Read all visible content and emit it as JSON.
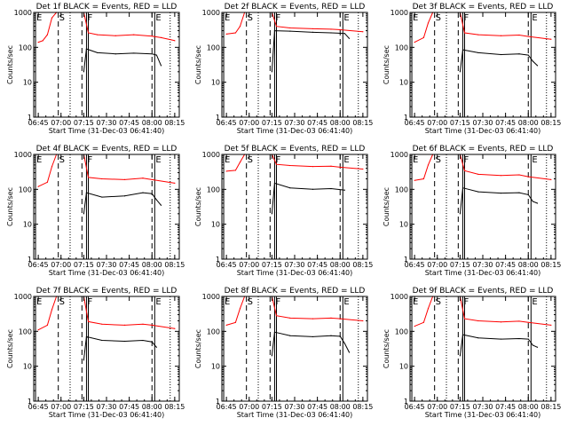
{
  "chart_data": [
    {
      "title": "Det 1f BLACK = Events, RED = LLD",
      "xlabel": "Start Time (31-Dec-03 06:41:40)",
      "ylabel": "Counts/sec",
      "red": {
        "pre": [
          {
            "x": 6.75,
            "y": 140
          },
          {
            "x": 6.8,
            "y": 155
          },
          {
            "x": 6.85,
            "y": 230
          },
          {
            "x": 6.9,
            "y": 700
          },
          {
            "x": 6.95,
            "y": 1000
          }
        ],
        "post": [
          {
            "x": 7.25,
            "y": 1000
          },
          {
            "x": 7.3,
            "y": 260
          },
          {
            "x": 7.4,
            "y": 230
          },
          {
            "x": 7.6,
            "y": 215
          },
          {
            "x": 7.8,
            "y": 230
          },
          {
            "x": 8.0,
            "y": 210
          },
          {
            "x": 8.1,
            "y": 190
          },
          {
            "x": 8.25,
            "y": 155
          }
        ]
      },
      "black": [
        {
          "x": 7.25,
          "y": 20
        },
        {
          "x": 7.28,
          "y": 90
        },
        {
          "x": 7.4,
          "y": 70
        },
        {
          "x": 7.6,
          "y": 65
        },
        {
          "x": 7.8,
          "y": 68
        },
        {
          "x": 8.0,
          "y": 65
        },
        {
          "x": 8.05,
          "y": 60
        },
        {
          "x": 8.1,
          "y": 30
        }
      ]
    },
    {
      "title": "Det 2f BLACK = Events, RED = LLD",
      "xlabel": "Start Time (31-Dec-03 06:41:40)",
      "ylabel": "Counts/sec",
      "red": {
        "pre": [
          {
            "x": 6.75,
            "y": 240
          },
          {
            "x": 6.85,
            "y": 260
          },
          {
            "x": 6.9,
            "y": 400
          },
          {
            "x": 6.95,
            "y": 1000
          }
        ],
        "post": [
          {
            "x": 7.25,
            "y": 1000
          },
          {
            "x": 7.3,
            "y": 400
          },
          {
            "x": 7.45,
            "y": 360
          },
          {
            "x": 7.7,
            "y": 340
          },
          {
            "x": 7.9,
            "y": 330
          },
          {
            "x": 8.0,
            "y": 320
          },
          {
            "x": 8.25,
            "y": 280
          }
        ]
      },
      "black": [
        {
          "x": 7.25,
          "y": 20
        },
        {
          "x": 7.28,
          "y": 300
        },
        {
          "x": 7.45,
          "y": 290
        },
        {
          "x": 7.7,
          "y": 270
        },
        {
          "x": 7.9,
          "y": 260
        },
        {
          "x": 8.05,
          "y": 250
        },
        {
          "x": 8.1,
          "y": 180
        }
      ]
    },
    {
      "title": "Det 3f BLACK = Events, RED = LLD",
      "xlabel": "Start Time (31-Dec-03 06:41:40)",
      "ylabel": "Counts/sec",
      "red": {
        "pre": [
          {
            "x": 6.75,
            "y": 140
          },
          {
            "x": 6.85,
            "y": 190
          },
          {
            "x": 6.9,
            "y": 500
          },
          {
            "x": 6.95,
            "y": 1000
          }
        ],
        "post": [
          {
            "x": 7.25,
            "y": 1000
          },
          {
            "x": 7.3,
            "y": 260
          },
          {
            "x": 7.45,
            "y": 230
          },
          {
            "x": 7.7,
            "y": 215
          },
          {
            "x": 7.9,
            "y": 225
          },
          {
            "x": 8.0,
            "y": 205
          },
          {
            "x": 8.25,
            "y": 170
          }
        ]
      },
      "black": [
        {
          "x": 7.25,
          "y": 20
        },
        {
          "x": 7.28,
          "y": 85
        },
        {
          "x": 7.45,
          "y": 70
        },
        {
          "x": 7.7,
          "y": 62
        },
        {
          "x": 7.9,
          "y": 65
        },
        {
          "x": 8.0,
          "y": 60
        },
        {
          "x": 8.05,
          "y": 40
        },
        {
          "x": 8.1,
          "y": 30
        }
      ]
    },
    {
      "title": "Det 4f BLACK = Events, RED = LLD",
      "xlabel": "Start Time (31-Dec-03 06:41:40)",
      "ylabel": "Counts/sec",
      "red": {
        "pre": [
          {
            "x": 6.75,
            "y": 120
          },
          {
            "x": 6.85,
            "y": 160
          },
          {
            "x": 6.9,
            "y": 450
          },
          {
            "x": 6.95,
            "y": 1000
          }
        ],
        "post": [
          {
            "x": 7.25,
            "y": 1000
          },
          {
            "x": 7.3,
            "y": 220
          },
          {
            "x": 7.45,
            "y": 200
          },
          {
            "x": 7.7,
            "y": 190
          },
          {
            "x": 7.9,
            "y": 210
          },
          {
            "x": 8.0,
            "y": 190
          },
          {
            "x": 8.25,
            "y": 150
          }
        ]
      },
      "black": [
        {
          "x": 7.25,
          "y": 20
        },
        {
          "x": 7.28,
          "y": 80
        },
        {
          "x": 7.45,
          "y": 60
        },
        {
          "x": 7.7,
          "y": 65
        },
        {
          "x": 7.9,
          "y": 80
        },
        {
          "x": 8.0,
          "y": 75
        },
        {
          "x": 8.05,
          "y": 50
        },
        {
          "x": 8.1,
          "y": 35
        }
      ]
    },
    {
      "title": "Det 5f BLACK = Events, RED = LLD",
      "xlabel": "Start Time (31-Dec-03 06:41:40)",
      "ylabel": "Counts/sec",
      "red": {
        "pre": [
          {
            "x": 6.75,
            "y": 330
          },
          {
            "x": 6.85,
            "y": 350
          },
          {
            "x": 6.9,
            "y": 600
          },
          {
            "x": 6.95,
            "y": 1000
          }
        ],
        "post": [
          {
            "x": 7.25,
            "y": 1000
          },
          {
            "x": 7.3,
            "y": 520
          },
          {
            "x": 7.45,
            "y": 480
          },
          {
            "x": 7.7,
            "y": 450
          },
          {
            "x": 7.9,
            "y": 460
          },
          {
            "x": 8.0,
            "y": 430
          },
          {
            "x": 8.25,
            "y": 380
          }
        ]
      },
      "black": [
        {
          "x": 7.25,
          "y": 20
        },
        {
          "x": 7.28,
          "y": 150
        },
        {
          "x": 7.45,
          "y": 110
        },
        {
          "x": 7.7,
          "y": 100
        },
        {
          "x": 7.9,
          "y": 105
        },
        {
          "x": 8.05,
          "y": 95
        }
      ]
    },
    {
      "title": "Det 6f BLACK = Events, RED = LLD",
      "xlabel": "Start Time (31-Dec-03 06:41:40)",
      "ylabel": "Counts/sec",
      "red": {
        "pre": [
          {
            "x": 6.75,
            "y": 180
          },
          {
            "x": 6.85,
            "y": 200
          },
          {
            "x": 6.9,
            "y": 500
          },
          {
            "x": 6.95,
            "y": 1000
          }
        ],
        "post": [
          {
            "x": 7.25,
            "y": 1000
          },
          {
            "x": 7.3,
            "y": 340
          },
          {
            "x": 7.45,
            "y": 270
          },
          {
            "x": 7.7,
            "y": 250
          },
          {
            "x": 7.9,
            "y": 260
          },
          {
            "x": 8.0,
            "y": 230
          },
          {
            "x": 8.25,
            "y": 190
          }
        ]
      },
      "black": [
        {
          "x": 7.25,
          "y": 20
        },
        {
          "x": 7.28,
          "y": 110
        },
        {
          "x": 7.45,
          "y": 85
        },
        {
          "x": 7.7,
          "y": 78
        },
        {
          "x": 7.9,
          "y": 80
        },
        {
          "x": 8.0,
          "y": 70
        },
        {
          "x": 8.05,
          "y": 45
        },
        {
          "x": 8.1,
          "y": 40
        }
      ]
    },
    {
      "title": "Det 7f BLACK = Events, RED = LLD",
      "xlabel": "Start Time (31-Dec-03 06:41:40)",
      "ylabel": "Counts/sec",
      "red": {
        "pre": [
          {
            "x": 6.75,
            "y": 110
          },
          {
            "x": 6.85,
            "y": 150
          },
          {
            "x": 6.9,
            "y": 420
          },
          {
            "x": 6.95,
            "y": 1000
          }
        ],
        "post": [
          {
            "x": 7.25,
            "y": 1000
          },
          {
            "x": 7.3,
            "y": 190
          },
          {
            "x": 7.45,
            "y": 160
          },
          {
            "x": 7.7,
            "y": 150
          },
          {
            "x": 7.9,
            "y": 160
          },
          {
            "x": 8.0,
            "y": 150
          },
          {
            "x": 8.25,
            "y": 120
          }
        ]
      },
      "black": [
        {
          "x": 7.25,
          "y": 15
        },
        {
          "x": 7.28,
          "y": 70
        },
        {
          "x": 7.45,
          "y": 55
        },
        {
          "x": 7.7,
          "y": 52
        },
        {
          "x": 7.9,
          "y": 55
        },
        {
          "x": 8.0,
          "y": 50
        },
        {
          "x": 8.05,
          "y": 35
        }
      ]
    },
    {
      "title": "Det 8f BLACK = Events, RED = LLD",
      "xlabel": "Start Time (31-Dec-03 06:41:40)",
      "ylabel": "Counts/sec",
      "red": {
        "pre": [
          {
            "x": 6.75,
            "y": 150
          },
          {
            "x": 6.85,
            "y": 180
          },
          {
            "x": 6.9,
            "y": 450
          },
          {
            "x": 6.95,
            "y": 1000
          }
        ],
        "post": [
          {
            "x": 7.25,
            "y": 1000
          },
          {
            "x": 7.3,
            "y": 280
          },
          {
            "x": 7.45,
            "y": 240
          },
          {
            "x": 7.7,
            "y": 230
          },
          {
            "x": 7.9,
            "y": 240
          },
          {
            "x": 8.0,
            "y": 230
          },
          {
            "x": 8.25,
            "y": 200
          }
        ]
      },
      "black": [
        {
          "x": 7.25,
          "y": 20
        },
        {
          "x": 7.28,
          "y": 95
        },
        {
          "x": 7.45,
          "y": 75
        },
        {
          "x": 7.7,
          "y": 70
        },
        {
          "x": 7.9,
          "y": 75
        },
        {
          "x": 8.0,
          "y": 72
        },
        {
          "x": 8.05,
          "y": 45
        },
        {
          "x": 8.1,
          "y": 25
        }
      ]
    },
    {
      "title": "Det 9f BLACK = Events, RED = LLD",
      "xlabel": "Start Time (31-Dec-03 06:41:40)",
      "ylabel": "Counts/sec",
      "red": {
        "pre": [
          {
            "x": 6.75,
            "y": 140
          },
          {
            "x": 6.85,
            "y": 180
          },
          {
            "x": 6.9,
            "y": 450
          },
          {
            "x": 6.95,
            "y": 1000
          }
        ],
        "post": [
          {
            "x": 7.25,
            "y": 1000
          },
          {
            "x": 7.3,
            "y": 230
          },
          {
            "x": 7.45,
            "y": 200
          },
          {
            "x": 7.7,
            "y": 185
          },
          {
            "x": 7.9,
            "y": 195
          },
          {
            "x": 8.0,
            "y": 180
          },
          {
            "x": 8.25,
            "y": 150
          }
        ]
      },
      "black": [
        {
          "x": 7.25,
          "y": 20
        },
        {
          "x": 7.28,
          "y": 80
        },
        {
          "x": 7.45,
          "y": 65
        },
        {
          "x": 7.7,
          "y": 60
        },
        {
          "x": 7.9,
          "y": 62
        },
        {
          "x": 8.0,
          "y": 60
        },
        {
          "x": 8.05,
          "y": 40
        },
        {
          "x": 8.1,
          "y": 35
        }
      ]
    }
  ],
  "shared_axes": {
    "type": "line",
    "xlim": [
      6.7,
      8.3
    ],
    "ylim": [
      1,
      1000
    ],
    "yscale": "log",
    "x_ticks": [
      {
        "value": 6.75,
        "label": "06:45"
      },
      {
        "value": 7.0,
        "label": "07:00"
      },
      {
        "value": 7.25,
        "label": "07:15"
      },
      {
        "value": 7.5,
        "label": "07:30"
      },
      {
        "value": 7.75,
        "label": "07:45"
      },
      {
        "value": 8.0,
        "label": "08:00"
      },
      {
        "value": 8.25,
        "label": "08:15"
      }
    ],
    "y_ticks": [
      {
        "value": 1,
        "label": "1"
      },
      {
        "value": 10,
        "label": "10"
      },
      {
        "value": 100,
        "label": "100"
      },
      {
        "value": 1000,
        "label": "1000"
      }
    ],
    "markers": [
      {
        "x": 6.72,
        "label": "E",
        "style": "solid"
      },
      {
        "x": 6.97,
        "label": "S",
        "style": "dash"
      },
      {
        "x": 7.1,
        "label": "",
        "style": "dot"
      },
      {
        "x": 7.23,
        "label": "",
        "style": "dash"
      },
      {
        "x": 7.28,
        "label": "F",
        "style": "solid"
      },
      {
        "x": 7.3,
        "label": "",
        "style": "solid"
      },
      {
        "x": 8.0,
        "label": "",
        "style": "dash"
      },
      {
        "x": 8.03,
        "label": "E",
        "style": "solid"
      },
      {
        "x": 8.2,
        "label": "",
        "style": "dot"
      }
    ],
    "colors": {
      "events": "#000000",
      "lld": "#ff0000"
    }
  }
}
